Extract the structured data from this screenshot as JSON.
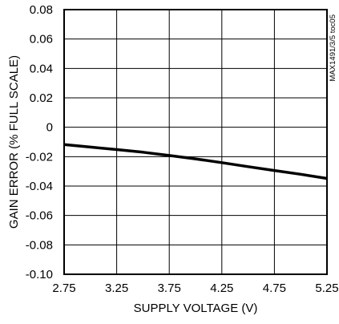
{
  "chart_data": {
    "type": "line",
    "title": "",
    "xlabel": "SUPPLY VOLTAGE (V)",
    "ylabel": "GAIN ERROR (% FULL SCALE)",
    "xlim": [
      2.75,
      5.25
    ],
    "ylim": [
      -0.1,
      0.08
    ],
    "x_ticks": [
      2.75,
      3.25,
      3.75,
      4.25,
      4.75,
      5.25
    ],
    "x_tick_labels": [
      "2.75",
      "3.25",
      "3.75",
      "4.25",
      "4.75",
      "5.25"
    ],
    "y_ticks": [
      0.08,
      0.06,
      0.04,
      0.02,
      0,
      -0.02,
      -0.04,
      -0.06,
      -0.08,
      -0.1
    ],
    "y_tick_labels": [
      "0.08",
      "0.06",
      "0.04",
      "0.02",
      "0",
      "-0.02",
      "-0.04",
      "-0.06",
      "-0.08",
      "-0.10"
    ],
    "grid": true,
    "legend": "none",
    "annotation": "MAX1491/3/5 toc05",
    "line_color": "#000000",
    "series": [
      {
        "x": [
          2.75,
          3.0,
          3.25,
          3.5,
          3.75,
          4.0,
          4.25,
          4.5,
          4.75,
          5.0,
          5.25
        ],
        "y": [
          -0.0118,
          -0.0135,
          -0.0152,
          -0.017,
          -0.0192,
          -0.0215,
          -0.0241,
          -0.0268,
          -0.0294,
          -0.032,
          -0.0348
        ]
      }
    ]
  }
}
